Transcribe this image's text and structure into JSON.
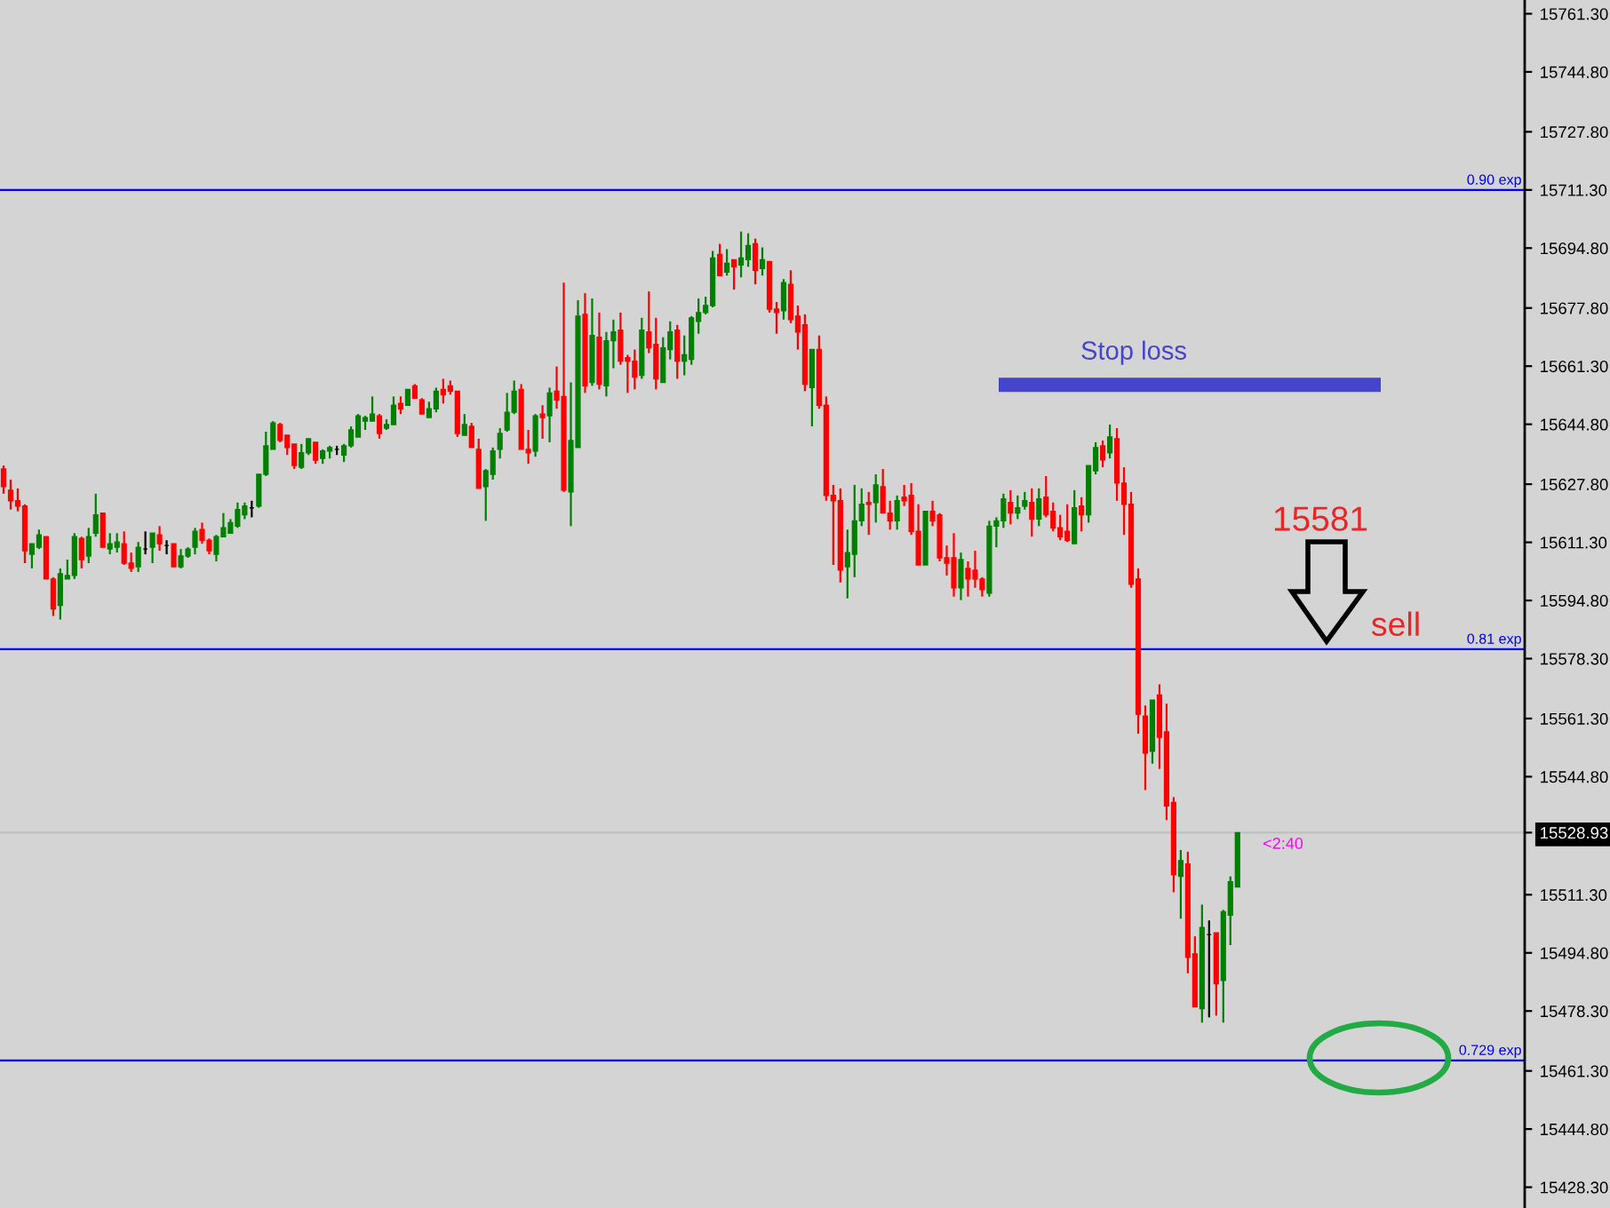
{
  "chart_data": {
    "type": "candlestick",
    "categories": [
      null,
      null,
      null,
      null,
      null,
      null,
      null,
      null,
      null,
      null,
      null,
      null,
      null,
      null,
      null,
      null,
      null,
      null,
      null,
      null,
      null,
      null,
      null,
      null,
      null,
      null,
      null,
      null,
      null,
      null,
      null,
      null,
      null,
      null,
      null,
      null,
      null,
      null,
      null,
      null,
      null,
      null,
      null,
      null,
      null,
      null,
      null,
      null,
      null,
      null,
      null,
      null,
      null,
      null,
      null,
      null,
      null,
      null,
      null,
      null,
      null,
      null,
      null,
      null,
      null,
      null,
      null,
      null,
      null,
      null,
      null,
      null,
      null,
      null,
      null,
      null,
      null,
      null,
      null,
      null,
      null,
      null,
      null,
      null,
      null,
      null,
      null,
      null,
      null,
      null,
      null,
      null,
      null,
      null,
      null,
      null,
      null,
      null,
      null,
      null,
      null,
      null,
      null,
      null,
      null,
      null,
      null,
      null,
      null,
      null,
      null,
      null,
      null,
      null,
      null,
      null,
      null,
      null,
      null,
      null,
      null,
      null,
      null,
      null,
      null,
      null,
      null,
      null,
      null,
      null,
      null,
      null,
      null,
      null,
      null,
      null,
      null,
      null,
      null,
      null,
      null,
      null,
      null,
      null,
      null,
      null,
      null,
      null,
      null,
      null,
      null,
      null,
      null,
      null,
      null,
      null,
      null,
      null,
      null,
      null,
      null,
      null,
      null,
      null,
      null,
      null,
      null,
      null,
      null,
      null,
      null,
      null,
      null,
      null,
      null,
      null,
      null,
      null,
      null,
      null,
      null,
      null,
      null,
      null,
      null,
      null,
      null,
      null,
      null,
      null,
      null,
      null,
      null,
      null,
      null,
      null,
      null,
      null,
      null,
      null,
      null,
      null,
      null,
      null,
      null,
      null,
      null,
      null,
      null,
      null,
      null,
      null,
      null,
      null,
      null
    ],
    "ohlc": [
      [
        15632.1,
        15633.1,
        15625.1,
        15627.1
      ],
      [
        15626.1,
        15629.1,
        15620.6,
        15623.1
      ],
      [
        15623.1,
        15626.6,
        15620.1,
        15621.6
      ],
      [
        15621.6,
        15622.1,
        15605.4,
        15608.9
      ],
      [
        15607.9,
        15610.9,
        15603.9,
        15610.9
      ],
      [
        15609.9,
        15614.9,
        15609.4,
        15613.4
      ],
      [
        15612.9,
        15612.9,
        15600.9,
        15600.9
      ],
      [
        15600.9,
        15601.4,
        15590.4,
        15592.4
      ],
      [
        15593.4,
        15603.9,
        15589.4,
        15602.4
      ],
      [
        15600.9,
        15606.4,
        15600.9,
        15601.9
      ],
      [
        15601.9,
        15613.9,
        15600.9,
        15612.9
      ],
      [
        15612.4,
        15612.9,
        15603.9,
        15606.4
      ],
      [
        15607.4,
        15615.4,
        15605.4,
        15612.9
      ],
      [
        15613.9,
        15625.1,
        15612.9,
        15619.1
      ],
      [
        15619.6,
        15619.6,
        15609.9,
        15609.9
      ],
      [
        15609.4,
        15613.9,
        15607.9,
        15610.9
      ],
      [
        15609.9,
        15613.9,
        15608.4,
        15611.4
      ],
      [
        15610.9,
        15614.4,
        15604.9,
        15605.4
      ],
      [
        15605.4,
        15608.4,
        15602.9,
        15603.9
      ],
      [
        15604.4,
        15611.4,
        15602.9,
        15609.9
      ],
      [
        15609.4,
        15614.4,
        15607.9,
        15609.4
      ],
      [
        15609.9,
        15613.9,
        15605.4,
        15613.9
      ],
      [
        15613.4,
        15615.9,
        15608.9,
        15610.9
      ],
      [
        15610.4,
        15611.9,
        15607.9,
        15610.4
      ],
      [
        15610.9,
        15610.9,
        15604.4,
        15604.4
      ],
      [
        15604.4,
        15609.4,
        15603.9,
        15607.4
      ],
      [
        15607.4,
        15609.9,
        15606.9,
        15609.4
      ],
      [
        15609.9,
        15615.4,
        15607.9,
        15614.4
      ],
      [
        15614.9,
        15616.9,
        15610.9,
        15611.9
      ],
      [
        15611.9,
        15612.4,
        15607.9,
        15608.9
      ],
      [
        15607.9,
        15613.4,
        15605.9,
        15612.9
      ],
      [
        15612.9,
        15619.6,
        15612.9,
        15615.4
      ],
      [
        15613.9,
        15617.9,
        15613.9,
        15616.9
      ],
      [
        15615.9,
        15622.6,
        15615.4,
        15620.6
      ],
      [
        15619.1,
        15622.6,
        15617.9,
        15621.6
      ],
      [
        15621.1,
        15623.1,
        15618.4,
        15621.1
      ],
      [
        15621.6,
        15630.6,
        15621.1,
        15630.6
      ],
      [
        15630.6,
        15642.7,
        15630.1,
        15638.7
      ],
      [
        15637.7,
        15645.7,
        15637.7,
        15645.2
      ],
      [
        15644.7,
        15645.2,
        15639.7,
        15640.2
      ],
      [
        15641.7,
        15641.7,
        15636.1,
        15638.2
      ],
      [
        15639.2,
        15639.2,
        15632.1,
        15633.1
      ],
      [
        15632.6,
        15639.2,
        15632.1,
        15636.7
      ],
      [
        15636.7,
        15640.7,
        15636.1,
        15640.7
      ],
      [
        15639.7,
        15639.7,
        15633.6,
        15634.6
      ],
      [
        15635.1,
        15637.7,
        15633.6,
        15637.2
      ],
      [
        15637.2,
        15638.7,
        15635.1,
        15638.2
      ],
      [
        15637.7,
        15638.7,
        15636.1,
        15637.7
      ],
      [
        15636.1,
        15639.2,
        15634.1,
        15638.7
      ],
      [
        15638.7,
        15644.2,
        15638.2,
        15643.2
      ],
      [
        15641.2,
        15647.7,
        15641.2,
        15647.2
      ],
      [
        15645.7,
        15647.2,
        15643.2,
        15646.7
      ],
      [
        15645.7,
        15652.7,
        15645.7,
        15647.7
      ],
      [
        15647.2,
        15647.7,
        15640.7,
        15642.2
      ],
      [
        15643.7,
        15646.2,
        15643.2,
        15644.7
      ],
      [
        15644.7,
        15652.7,
        15644.7,
        15650.2
      ],
      [
        15650.7,
        15652.7,
        15647.7,
        15649.2
      ],
      [
        15650.2,
        15654.7,
        15650.2,
        15654.7
      ],
      [
        15655.7,
        15656.2,
        15652.2,
        15652.2
      ],
      [
        15651.7,
        15652.2,
        15647.7,
        15647.7
      ],
      [
        15646.7,
        15651.2,
        15646.7,
        15649.2
      ],
      [
        15649.2,
        15655.2,
        15648.2,
        15654.2
      ],
      [
        15654.7,
        15657.7,
        15650.7,
        15653.2
      ],
      [
        15655.7,
        15657.2,
        15653.2,
        15654.2
      ],
      [
        15654.2,
        15654.2,
        15641.2,
        15642.2
      ],
      [
        15641.7,
        15647.7,
        15641.7,
        15644.7
      ],
      [
        15644.2,
        15645.2,
        15638.2,
        15638.2
      ],
      [
        15637.7,
        15640.7,
        15626.6,
        15626.6
      ],
      [
        15627.1,
        15632.1,
        15617.4,
        15631.6
      ],
      [
        15630.6,
        15638.2,
        15629.1,
        15637.2
      ],
      [
        15637.7,
        15643.7,
        15635.1,
        15642.2
      ],
      [
        15643.2,
        15653.7,
        15642.7,
        15648.2
      ],
      [
        15648.2,
        15657.2,
        15647.7,
        15654.2
      ],
      [
        15654.7,
        15656.2,
        15637.7,
        15637.7
      ],
      [
        15637.7,
        15643.2,
        15633.6,
        15636.7
      ],
      [
        15637.2,
        15647.7,
        15635.6,
        15647.2
      ],
      [
        15647.7,
        15650.2,
        15640.7,
        15646.7
      ],
      [
        15647.2,
        15655.2,
        15639.7,
        15653.7
      ],
      [
        15654.2,
        15661.2,
        15649.2,
        15651.7
      ],
      [
        15652.7,
        15685.0,
        15625.6,
        15626.1
      ],
      [
        15625.6,
        15656.7,
        15615.9,
        15640.2
      ],
      [
        15638.2,
        15680.0,
        15638.2,
        15675.5
      ],
      [
        15676.0,
        15682.0,
        15653.7,
        15655.7
      ],
      [
        15656.7,
        15680.5,
        15655.7,
        15670.0
      ],
      [
        15669.5,
        15676.5,
        15654.7,
        15656.2
      ],
      [
        15655.7,
        15671.0,
        15652.7,
        15668.5
      ],
      [
        15668.5,
        15674.5,
        15660.7,
        15671.0
      ],
      [
        15671.5,
        15676.5,
        15661.7,
        15662.7
      ],
      [
        15663.7,
        15664.5,
        15653.7,
        15662.7
      ],
      [
        15662.7,
        15666.0,
        15654.7,
        15658.2
      ],
      [
        15658.7,
        15675.0,
        15657.7,
        15671.5
      ],
      [
        15671.0,
        15682.5,
        15665.0,
        15666.5
      ],
      [
        15667.5,
        15675.0,
        15654.7,
        15657.7
      ],
      [
        15656.7,
        15669.5,
        15656.7,
        15666.5
      ],
      [
        15666.0,
        15674.0,
        15663.2,
        15671.0
      ],
      [
        15671.5,
        15673.0,
        15657.7,
        15662.7
      ],
      [
        15662.7,
        15670.0,
        15658.7,
        15664.5
      ],
      [
        15663.2,
        15675.5,
        15661.7,
        15675.0
      ],
      [
        15674.0,
        15680.5,
        15670.5,
        15676.5
      ],
      [
        15676.5,
        15681.0,
        15676.0,
        15678.5
      ],
      [
        15678.5,
        15694.0,
        15678.0,
        15692.0
      ],
      [
        15693.0,
        15696.0,
        15687.0,
        15687.0
      ],
      [
        15688.0,
        15694.5,
        15687.0,
        15690.5
      ],
      [
        15691.5,
        15691.5,
        15683.0,
        15689.5
      ],
      [
        15690.0,
        15699.5,
        15686.5,
        15692.0
      ],
      [
        15691.5,
        15699.0,
        15689.5,
        15695.5
      ],
      [
        15696.0,
        15697.5,
        15684.5,
        15688.5
      ],
      [
        15689.0,
        15695.0,
        15687.0,
        15691.5
      ],
      [
        15691.0,
        15691.0,
        15676.5,
        15677.5
      ],
      [
        15677.5,
        15679.5,
        15670.5,
        15676.5
      ],
      [
        15677.0,
        15686.0,
        15674.5,
        15685.0
      ],
      [
        15684.5,
        15688.5,
        15673.5,
        15674.5
      ],
      [
        15675.5,
        15678.5,
        15666.0,
        15671.0
      ],
      [
        15673.0,
        15676.0,
        15654.2,
        15656.2
      ],
      [
        15655.2,
        15666.0,
        15644.2,
        15666.0
      ],
      [
        15666.0,
        15670.0,
        15649.2,
        15650.2
      ],
      [
        15650.2,
        15652.7,
        15623.1,
        15624.6
      ],
      [
        15624.6,
        15627.6,
        15604.9,
        15623.1
      ],
      [
        15623.1,
        15626.6,
        15599.9,
        15603.4
      ],
      [
        15604.4,
        15614.9,
        15595.4,
        15608.4
      ],
      [
        15607.9,
        15627.6,
        15601.4,
        15617.4
      ],
      [
        15617.4,
        15626.6,
        15615.9,
        15622.1
      ],
      [
        15622.6,
        15625.6,
        15613.4,
        15622.1
      ],
      [
        15622.6,
        15630.6,
        15616.9,
        15627.6
      ],
      [
        15627.1,
        15632.1,
        15619.6,
        15619.6
      ],
      [
        15619.6,
        15623.1,
        15614.9,
        15617.4
      ],
      [
        15617.4,
        15624.6,
        15614.9,
        15623.1
      ],
      [
        15624.1,
        15627.6,
        15621.6,
        15623.1
      ],
      [
        15624.6,
        15628.1,
        15613.4,
        15614.4
      ],
      [
        15614.4,
        15622.1,
        15604.9,
        15604.9
      ],
      [
        15604.9,
        15620.1,
        15604.9,
        15620.1
      ],
      [
        15620.1,
        15623.1,
        15615.9,
        15617.4
      ],
      [
        15619.1,
        15619.6,
        15605.9,
        15606.9
      ],
      [
        15606.9,
        15610.4,
        15601.9,
        15605.4
      ],
      [
        15606.9,
        15613.9,
        15595.9,
        15598.4
      ],
      [
        15598.4,
        15608.4,
        15594.9,
        15606.4
      ],
      [
        15603.9,
        15605.9,
        15595.9,
        15600.9
      ],
      [
        15603.4,
        15608.9,
        15598.4,
        15600.9
      ],
      [
        15600.9,
        15601.4,
        15595.9,
        15597.9
      ],
      [
        15596.9,
        15617.4,
        15595.9,
        15615.9
      ],
      [
        15615.9,
        15618.4,
        15609.9,
        15617.4
      ],
      [
        15617.4,
        15625.1,
        15615.4,
        15623.6
      ],
      [
        15622.6,
        15626.1,
        15616.4,
        15619.6
      ],
      [
        15619.6,
        15624.6,
        15617.9,
        15621.1
      ],
      [
        15621.6,
        15625.6,
        15620.6,
        15623.1
      ],
      [
        15622.6,
        15626.6,
        15612.9,
        15617.9
      ],
      [
        15617.9,
        15626.6,
        15615.9,
        15623.6
      ],
      [
        15624.1,
        15630.1,
        15618.4,
        15619.1
      ],
      [
        15620.1,
        15622.6,
        15614.4,
        15615.4
      ],
      [
        15615.4,
        15619.1,
        15611.9,
        15612.9
      ],
      [
        15614.4,
        15622.1,
        15611.4,
        15611.9
      ],
      [
        15610.9,
        15626.1,
        15610.9,
        15621.1
      ],
      [
        15621.6,
        15624.1,
        15614.4,
        15619.1
      ],
      [
        15619.1,
        15633.1,
        15616.9,
        15633.1
      ],
      [
        15631.6,
        15639.7,
        15630.6,
        15638.2
      ],
      [
        15638.7,
        15640.2,
        15632.6,
        15634.7
      ],
      [
        15636.7,
        15644.7,
        15635.1,
        15641.2
      ],
      [
        15640.7,
        15643.7,
        15623.1,
        15628.1
      ],
      [
        15628.1,
        15632.6,
        15613.4,
        15622.1
      ],
      [
        15622.1,
        15625.6,
        15598.4,
        15599.4
      ],
      [
        15600.9,
        15603.9,
        15557.0,
        15562.5
      ],
      [
        15562.0,
        15565.0,
        15541.0,
        15551.5
      ],
      [
        15552.0,
        15566.5,
        15548.5,
        15566.5
      ],
      [
        15568.0,
        15571.0,
        15547.0,
        15556.0
      ],
      [
        15557.5,
        15565.5,
        15532.5,
        15536.5
      ],
      [
        15537.5,
        15539.0,
        15512.0,
        15517.0
      ],
      [
        15516.5,
        15524.0,
        15504.5,
        15521.0
      ],
      [
        15520.0,
        15523.5,
        15489.0,
        15493.5
      ],
      [
        15494.5,
        15499.5,
        15479.5,
        15479.5
      ],
      [
        15479.0,
        15508.5,
        15475.0,
        15502.0
      ],
      [
        15500.0,
        15504.0,
        15476.5,
        15500.0
      ],
      [
        15500.5,
        15500.5,
        15477.0,
        15486.0
      ],
      [
        15487.0,
        15507.0,
        15475.0,
        15506.5
      ],
      [
        15505.5,
        15516.5,
        15497.0,
        15515.0
      ],
      [
        15513.5,
        15528.93,
        15513.5,
        15528.93
      ],
      null,
      null,
      null,
      null,
      null,
      null,
      null,
      null,
      null,
      null,
      null,
      null,
      null,
      null,
      null,
      null,
      null,
      null,
      null,
      null,
      null,
      null,
      null,
      null,
      null,
      null,
      null,
      null,
      null,
      null,
      null,
      null,
      null,
      null,
      null,
      null,
      null,
      null,
      null,
      null
    ],
    "colors": [
      "#ff0000",
      "#ff0000",
      "#ff0000",
      "#ff0000",
      "#008000",
      "#008000",
      "#ff0000",
      "#ff0000",
      "#008000",
      "#008000",
      "#008000",
      "#ff0000",
      "#008000",
      "#008000",
      "#ff0000",
      "#008000",
      "#008000",
      "#ff0000",
      "#ff0000",
      "#008000",
      "#000000",
      "#008000",
      "#ff0000",
      "#000000",
      "#ff0000",
      "#008000",
      "#008000",
      "#008000",
      "#ff0000",
      "#ff0000",
      "#008000",
      "#008000",
      "#008000",
      "#008000",
      "#008000",
      "#000000",
      "#008000",
      "#008000",
      "#008000",
      "#ff0000",
      "#ff0000",
      "#ff0000",
      "#008000",
      "#008000",
      "#ff0000",
      "#008000",
      "#008000",
      "#000000",
      "#008000",
      "#008000",
      "#008000",
      "#008000",
      "#008000",
      "#ff0000",
      "#008000",
      "#008000",
      "#ff0000",
      "#008000",
      "#ff0000",
      "#ff0000",
      "#008000",
      "#008000",
      "#ff0000",
      "#ff0000",
      "#ff0000",
      "#008000",
      "#ff0000",
      "#ff0000",
      "#008000",
      "#008000",
      "#008000",
      "#008000",
      "#008000",
      "#ff0000",
      "#ff0000",
      "#008000",
      "#ff0000",
      "#008000",
      "#ff0000",
      "#ff0000",
      "#008000",
      "#008000",
      "#ff0000",
      "#008000",
      "#ff0000",
      "#008000",
      "#008000",
      "#ff0000",
      "#ff0000",
      "#ff0000",
      "#008000",
      "#ff0000",
      "#ff0000",
      "#008000",
      "#008000",
      "#ff0000",
      "#008000",
      "#008000",
      "#008000",
      "#008000",
      "#008000",
      "#ff0000",
      "#008000",
      "#ff0000",
      "#008000",
      "#008000",
      "#ff0000",
      "#008000",
      "#ff0000",
      "#ff0000",
      "#008000",
      "#ff0000",
      "#ff0000",
      "#ff0000",
      "#008000",
      "#ff0000",
      "#ff0000",
      "#ff0000",
      "#ff0000",
      "#008000",
      "#008000",
      "#008000",
      "#ff0000",
      "#008000",
      "#ff0000",
      "#ff0000",
      "#008000",
      "#ff0000",
      "#ff0000",
      "#ff0000",
      "#008000",
      "#ff0000",
      "#ff0000",
      "#ff0000",
      "#ff0000",
      "#008000",
      "#ff0000",
      "#ff0000",
      "#ff0000",
      "#008000",
      "#008000",
      "#008000",
      "#ff0000",
      "#008000",
      "#008000",
      "#ff0000",
      "#008000",
      "#ff0000",
      "#ff0000",
      "#ff0000",
      "#ff0000",
      "#008000",
      "#ff0000",
      "#008000",
      "#008000",
      "#ff0000",
      "#008000",
      "#ff0000",
      "#ff0000",
      "#ff0000",
      "#ff0000",
      "#ff0000",
      "#008000",
      "#ff0000",
      "#ff0000",
      "#ff0000",
      "#008000",
      "#ff0000",
      "#ff0000",
      "#008000",
      "#000000",
      "#ff0000",
      "#008000",
      "#008000",
      "#008000",
      null,
      null,
      null,
      null,
      null,
      null,
      null,
      null,
      null,
      null,
      null,
      null,
      null,
      null,
      null,
      null,
      null,
      null,
      null,
      null,
      null,
      null,
      null,
      null,
      null,
      null,
      null,
      null,
      null,
      null,
      null,
      null,
      null,
      null,
      null,
      null,
      null,
      null,
      null,
      null
    ],
    "ylim": [
      15422.4,
      15765.2
    ],
    "yticks": [
      {
        "value": 15761.3,
        "label": "15761.30"
      },
      {
        "value": 15744.8,
        "label": "15744.80"
      },
      {
        "value": 15727.8,
        "label": "15727.80"
      },
      {
        "value": 15711.3,
        "label": "15711.30"
      },
      {
        "value": 15694.8,
        "label": "15694.80"
      },
      {
        "value": 15677.8,
        "label": "15677.80"
      },
      {
        "value": 15661.3,
        "label": "15661.30"
      },
      {
        "value": 15644.8,
        "label": "15644.80"
      },
      {
        "value": 15627.8,
        "label": "15627.80"
      },
      {
        "value": 15611.3,
        "label": "15611.30"
      },
      {
        "value": 15594.8,
        "label": "15594.80"
      },
      {
        "value": 15578.3,
        "label": "15578.30"
      },
      {
        "value": 15561.3,
        "label": "15561.30"
      },
      {
        "value": 15544.8,
        "label": "15544.80"
      },
      {
        "value": 15528.93,
        "label": "15528.93"
      },
      {
        "value": 15511.3,
        "label": "15511.30"
      },
      {
        "value": 15494.8,
        "label": "15494.80"
      },
      {
        "value": 15478.3,
        "label": "15478.30"
      },
      {
        "value": 15461.3,
        "label": "15461.30"
      },
      {
        "value": 15444.8,
        "label": "15444.80"
      },
      {
        "value": 15428.3,
        "label": "15428.30"
      }
    ],
    "tick_labels": "y",
    "ref_lines": [
      {
        "axis": "y",
        "value": 15711.3,
        "label": "0.90 exp",
        "color": "#0000ff"
      },
      {
        "axis": "y",
        "value": 15581,
        "label": "0.81 exp",
        "color": "#0000ff"
      },
      {
        "axis": "y",
        "value": 15464.3,
        "label": "0.729 exp",
        "color": "#0000ff"
      },
      {
        "axis": "y",
        "value": 15528.93,
        "color": "#c0c0c0"
      },
      {
        "axis": "y",
        "value": 15656.0,
        "label": "Stop loss",
        "color": "#4444cc"
      }
    ],
    "annotations": [
      "15581",
      "sell",
      "<2:40"
    ]
  }
}
